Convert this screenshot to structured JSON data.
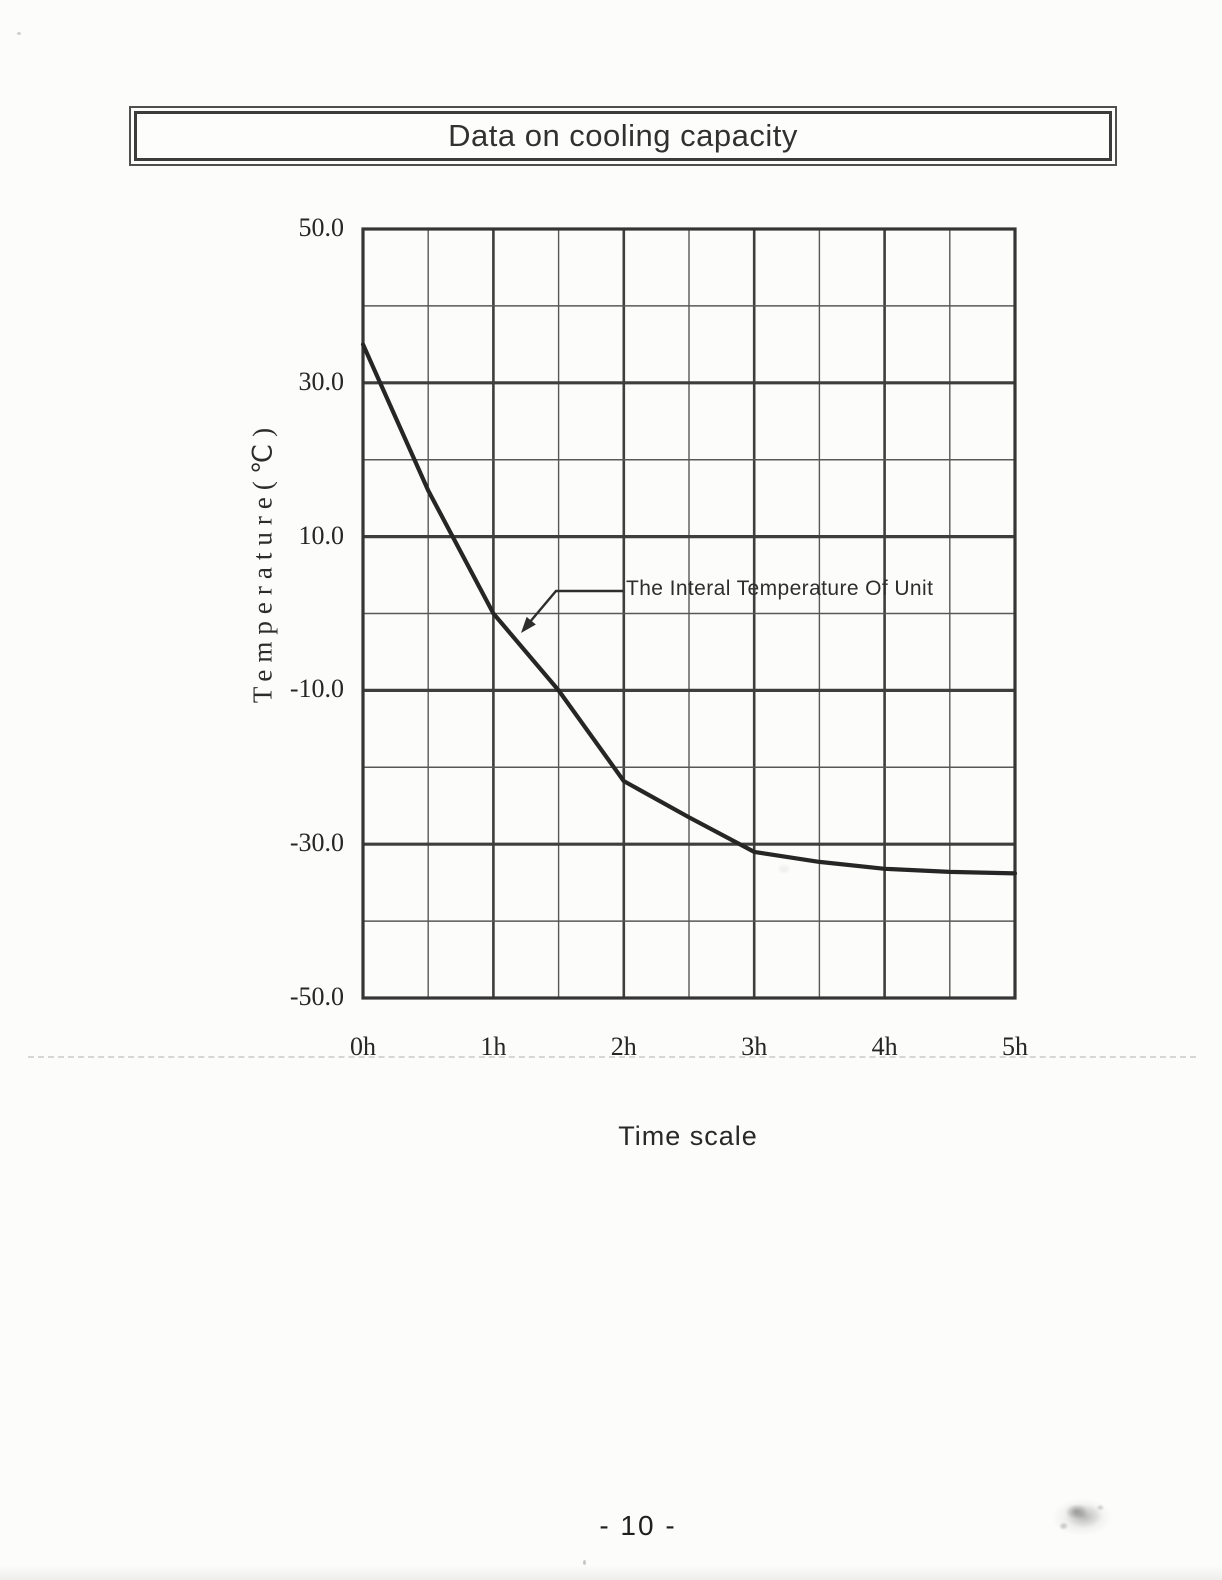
{
  "header": {
    "title": "Data on cooling capacity"
  },
  "page": {
    "number_label": "- 10 -"
  },
  "colors": {
    "ink": "#2e2e2e",
    "grid_major": "#3e3e3e",
    "grid_minor": "#585858",
    "border": "#353535",
    "curve": "#262626"
  },
  "chart_data": {
    "type": "line",
    "title": "Data on cooling capacity",
    "xlabel": "Time scale",
    "ylabel": "Temperature(℃)",
    "xlim": [
      0,
      5
    ],
    "ylim": [
      -50,
      50
    ],
    "grid": "on",
    "x_minor_step": 0.5,
    "y_minor_step": 10,
    "x_ticks": [
      {
        "value": 0,
        "label": "0h"
      },
      {
        "value": 1,
        "label": "1h"
      },
      {
        "value": 2,
        "label": "2h"
      },
      {
        "value": 3,
        "label": "3h"
      },
      {
        "value": 4,
        "label": "4h"
      },
      {
        "value": 5,
        "label": "5h"
      }
    ],
    "y_ticks": [
      {
        "value": 50,
        "label": "50.0"
      },
      {
        "value": 30,
        "label": "30.0"
      },
      {
        "value": 10,
        "label": "10.0"
      },
      {
        "value": -10,
        "label": "-10.0"
      },
      {
        "value": -30,
        "label": "-30.0"
      },
      {
        "value": -50,
        "label": "-50.0"
      }
    ],
    "series": [
      {
        "name": "The Interal Temperature Of Unit",
        "points": [
          [
            0,
            35
          ],
          [
            0.5,
            16
          ],
          [
            1,
            0
          ],
          [
            1.5,
            -10
          ],
          [
            2,
            -21.8
          ],
          [
            2.5,
            -26.5
          ],
          [
            3,
            -31
          ],
          [
            3.5,
            -32.3
          ],
          [
            4,
            -33.2
          ],
          [
            4.5,
            -33.6
          ],
          [
            5,
            -33.8
          ]
        ]
      }
    ],
    "annotation": {
      "label": "The Interal Temperature Of Unit"
    }
  }
}
